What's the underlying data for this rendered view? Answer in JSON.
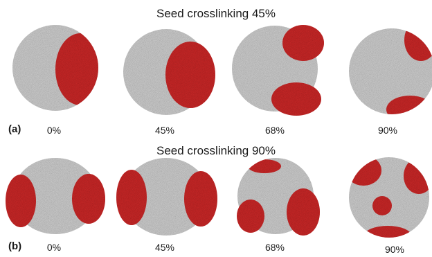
{
  "row_a": {
    "title": "Seed crosslinking 45%",
    "label": "(a)",
    "percentages": [
      "0%",
      "45%",
      "68%",
      "90%"
    ]
  },
  "row_b": {
    "title": "Seed crosslinking 90%",
    "label": "(b)",
    "percentages": [
      "0%",
      "45%",
      "68%",
      "90%"
    ]
  },
  "colors": {
    "seed": "#d8d8d8",
    "shell": "#d42a2a",
    "background": "#ffffff"
  }
}
